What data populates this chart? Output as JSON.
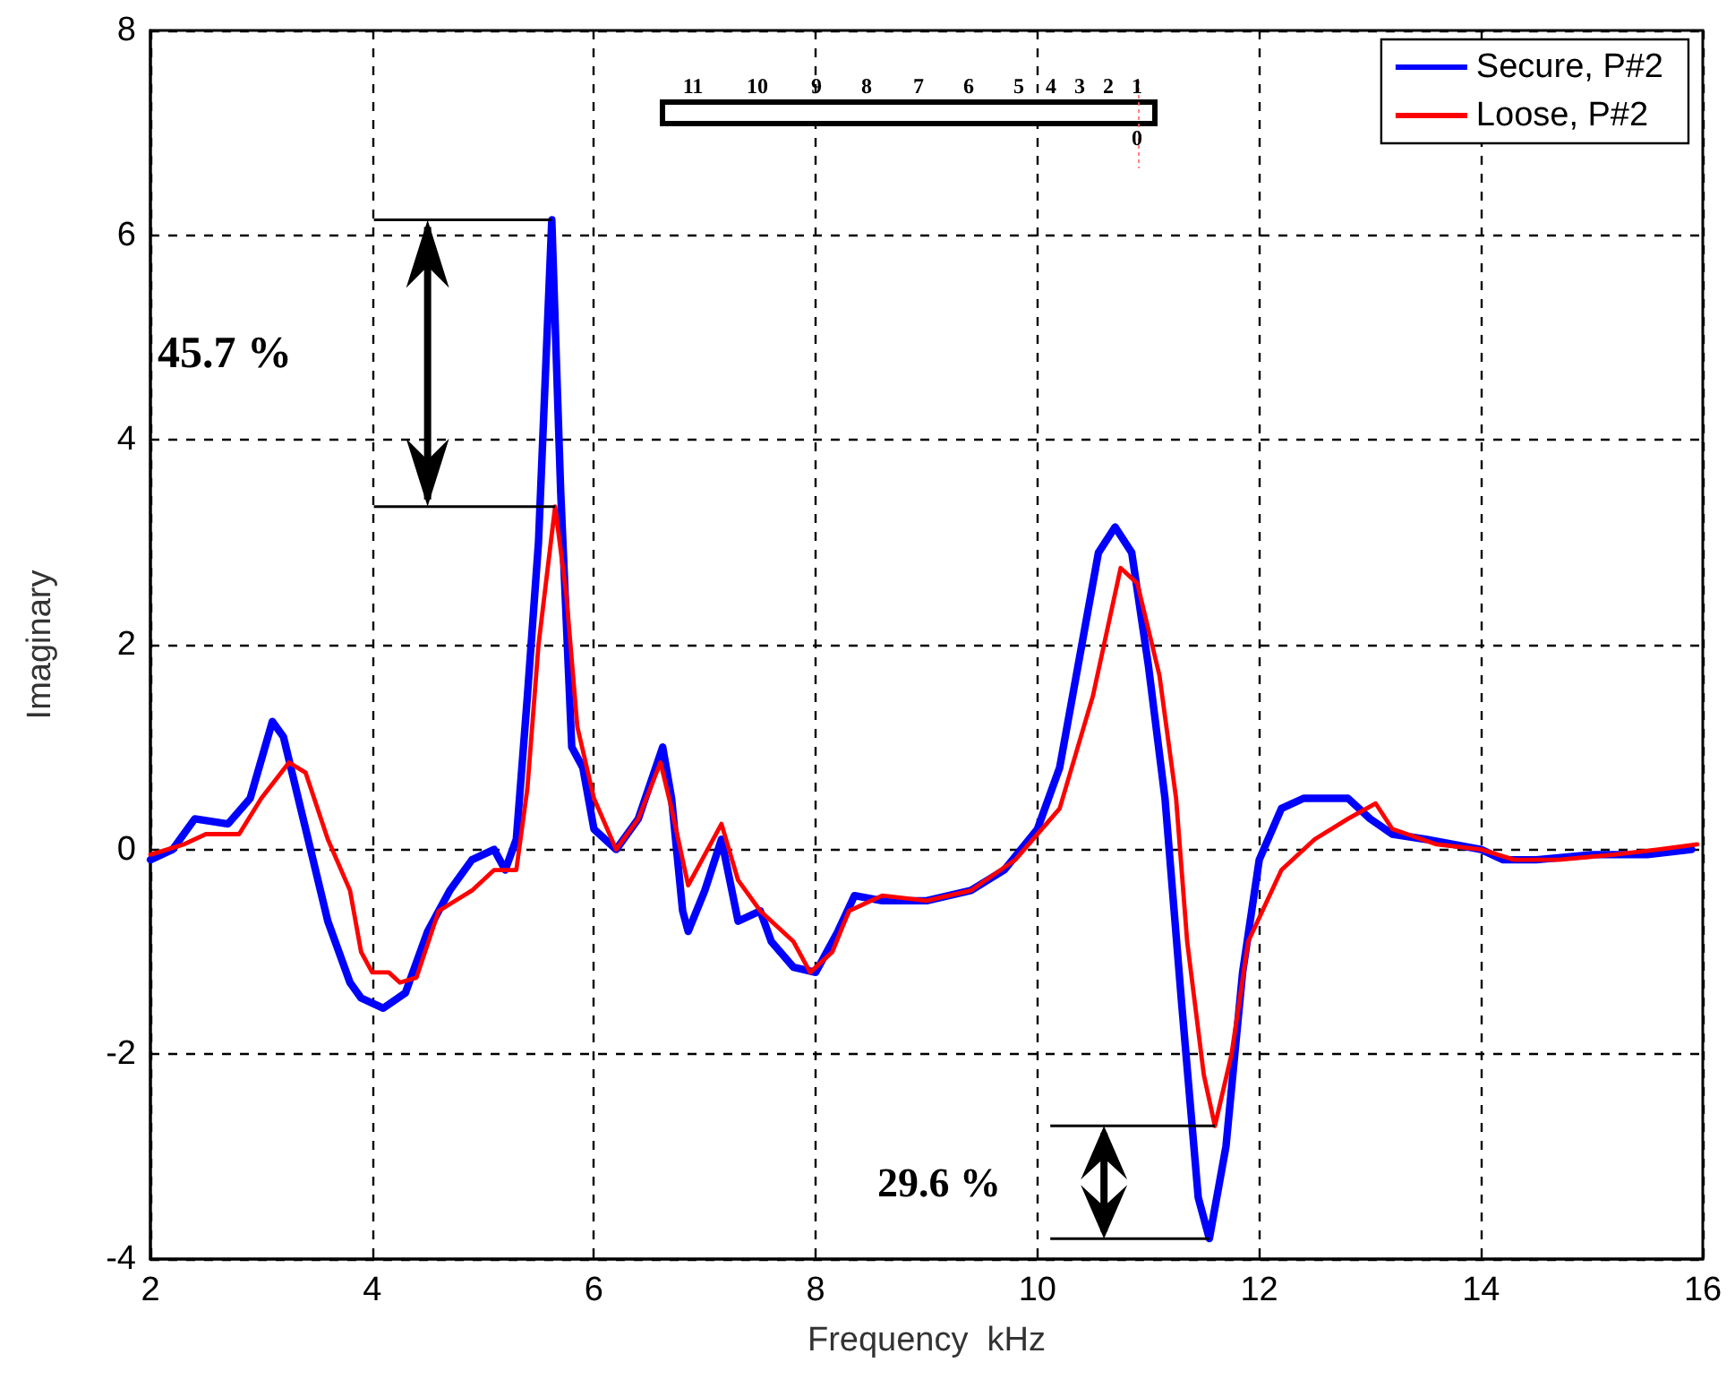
{
  "chart_data": {
    "type": "line",
    "xlabel": "Frequency  kHz",
    "ylabel": "Imaginary",
    "xlim": [
      2,
      16
    ],
    "xticks": [
      2,
      4,
      6,
      8,
      10,
      12,
      14,
      16
    ],
    "ylim": [
      -4,
      8
    ],
    "yticks": [
      -4,
      -2,
      0,
      2,
      4,
      6,
      8
    ],
    "grid": true,
    "legend": "top right",
    "marker": "none",
    "line_style": "solid",
    "annotations": [
      "45.7 %",
      "29.6 %",
      "11",
      "10",
      "9",
      "8",
      "7",
      "6",
      "5",
      "4",
      "3",
      "2",
      "1",
      "0"
    ],
    "series": [
      {
        "name": "Secure, P#2",
        "color": "#0000ff",
        "x": [
          2,
          2.2,
          2.4,
          2.7,
          2.9,
          3.1,
          3.2,
          3.4,
          3.6,
          3.8,
          3.9,
          4.1,
          4.3,
          4.5,
          4.7,
          4.9,
          5.1,
          5.2,
          5.3,
          5.4,
          5.5,
          5.62,
          5.7,
          5.8,
          5.9,
          6.0,
          6.2,
          6.4,
          6.62,
          6.7,
          6.8,
          6.85,
          7.0,
          7.15,
          7.3,
          7.5,
          7.6,
          7.8,
          8.0,
          8.2,
          8.35,
          8.6,
          9,
          9.4,
          9.7,
          10,
          10.2,
          10.4,
          10.55,
          10.7,
          10.85,
          11,
          11.15,
          11.3,
          11.45,
          11.55,
          11.7,
          11.85,
          12,
          12.2,
          12.4,
          12.8,
          13,
          13.2,
          13.5,
          14,
          14.2,
          14.5,
          15,
          15.5,
          15.9
        ],
        "values": [
          -0.1,
          0.0,
          0.3,
          0.25,
          0.5,
          1.25,
          1.1,
          0.2,
          -0.7,
          -1.3,
          -1.45,
          -1.55,
          -1.4,
          -0.8,
          -0.4,
          -0.1,
          0.0,
          -0.2,
          0.1,
          1.5,
          3.0,
          6.15,
          3.5,
          1.0,
          0.8,
          0.2,
          0.0,
          0.3,
          1.0,
          0.5,
          -0.6,
          -0.8,
          -0.4,
          0.1,
          -0.7,
          -0.6,
          -0.9,
          -1.15,
          -1.2,
          -0.8,
          -0.45,
          -0.5,
          -0.5,
          -0.4,
          -0.2,
          0.2,
          0.8,
          2.0,
          2.9,
          3.15,
          2.9,
          1.8,
          0.5,
          -1.5,
          -3.4,
          -3.8,
          -2.9,
          -1.2,
          -0.1,
          0.4,
          0.5,
          0.5,
          0.3,
          0.15,
          0.1,
          0.0,
          -0.1,
          -0.1,
          -0.05,
          -0.05,
          0.0
        ]
      },
      {
        "name": "Loose, P#2",
        "color": "#ff0000",
        "x": [
          2,
          2.3,
          2.5,
          2.8,
          3.0,
          3.25,
          3.4,
          3.6,
          3.8,
          3.9,
          4.0,
          4.15,
          4.25,
          4.4,
          4.6,
          4.9,
          5.1,
          5.3,
          5.4,
          5.5,
          5.65,
          5.75,
          5.85,
          6.0,
          6.2,
          6.4,
          6.6,
          6.7,
          6.85,
          7.0,
          7.15,
          7.3,
          7.5,
          7.8,
          7.95,
          8.15,
          8.3,
          8.6,
          9,
          9.4,
          9.8,
          10.2,
          10.5,
          10.75,
          10.9,
          11.1,
          11.25,
          11.35,
          11.5,
          11.6,
          11.75,
          11.9,
          12.2,
          12.5,
          12.8,
          13.05,
          13.2,
          13.6,
          14,
          14.3,
          14.7,
          15.2,
          15.6,
          15.95
        ],
        "values": [
          -0.05,
          0.05,
          0.15,
          0.15,
          0.5,
          0.85,
          0.75,
          0.1,
          -0.4,
          -1.0,
          -1.2,
          -1.2,
          -1.3,
          -1.25,
          -0.6,
          -0.4,
          -0.2,
          -0.2,
          0.6,
          2.0,
          3.35,
          2.5,
          1.2,
          0.5,
          0.0,
          0.3,
          0.85,
          0.4,
          -0.35,
          -0.05,
          0.25,
          -0.3,
          -0.6,
          -0.9,
          -1.2,
          -1.0,
          -0.6,
          -0.45,
          -0.5,
          -0.4,
          -0.1,
          0.4,
          1.5,
          2.75,
          2.6,
          1.7,
          0.5,
          -0.9,
          -2.2,
          -2.7,
          -2.0,
          -0.9,
          -0.2,
          0.1,
          0.3,
          0.45,
          0.2,
          0.05,
          0.0,
          -0.1,
          -0.1,
          -0.05,
          0.0,
          0.05
        ]
      }
    ]
  }
}
